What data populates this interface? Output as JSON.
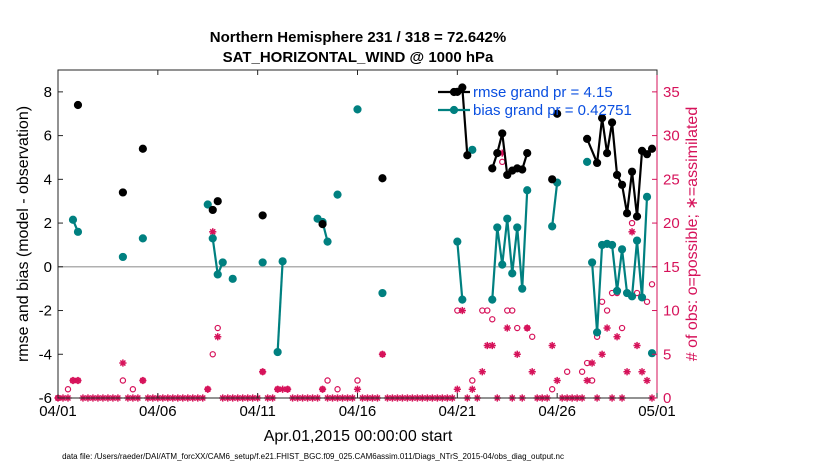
{
  "chart_data": {
    "type": "line",
    "title_lines": [
      "Northern Hemisphere 231 / 318 = 72.642%",
      "SAT_HORIZONTAL_WIND @ 1000 hPa"
    ],
    "xlabel": "Apr.01,2015 00:00:00 start",
    "ylabel_left": "rmse and bias (model - observation)",
    "ylabel_right": "# of obs: o=possible; ∗=assimilated",
    "footer": "data file: /Users/raeder/DAI/ATM_forcXX/CAM6_setup/f.e21.FHIST_BGC.f09_025.CAM6assim.011/Diags_NTrS_2015-04/obs_diag_output.nc",
    "x_domain_days": [
      0,
      30
    ],
    "x_ticks": [
      {
        "day": 0,
        "label": "04/01"
      },
      {
        "day": 5,
        "label": "04/06"
      },
      {
        "day": 10,
        "label": "04/11"
      },
      {
        "day": 15,
        "label": "04/16"
      },
      {
        "day": 20,
        "label": "04/21"
      },
      {
        "day": 25,
        "label": "04/26"
      },
      {
        "day": 30,
        "label": "05/01"
      }
    ],
    "ylim_left": [
      -6,
      9
    ],
    "y_ticks_left": [
      -6,
      -4,
      -2,
      0,
      2,
      4,
      6,
      8
    ],
    "ylim_right": [
      0,
      37.5
    ],
    "y_ticks_right": [
      0,
      5,
      10,
      15,
      20,
      25,
      30,
      35
    ],
    "zero_line": true,
    "legend_position": "top-right",
    "colors": {
      "rmse": "#000000",
      "bias": "#008080",
      "obs": "#d6125a",
      "zero": "#b0b0b0"
    },
    "series": [
      {
        "name": "rmse grand pr = 4.15",
        "key": "rmse",
        "points": [
          [
            1.0,
            7.4
          ],
          [
            3.25,
            3.4
          ],
          [
            4.25,
            5.4
          ],
          [
            7.75,
            2.6
          ],
          [
            8.0,
            3.0
          ],
          [
            10.25,
            2.35
          ],
          [
            13.25,
            1.95
          ],
          [
            16.25,
            4.05
          ],
          [
            20.0,
            8.0
          ],
          [
            20.25,
            8.2
          ],
          [
            20.5,
            5.1
          ],
          [
            21.75,
            4.5
          ],
          [
            22.0,
            5.2
          ],
          [
            22.25,
            6.1
          ],
          [
            22.5,
            4.2
          ],
          [
            22.75,
            4.4
          ],
          [
            23.0,
            4.5
          ],
          [
            23.25,
            4.45
          ],
          [
            23.5,
            5.2
          ],
          [
            24.75,
            4.0
          ],
          [
            25.0,
            7.0
          ],
          [
            26.5,
            5.85
          ],
          [
            27.0,
            4.75
          ],
          [
            27.25,
            6.8
          ],
          [
            27.5,
            5.2
          ],
          [
            27.75,
            6.6
          ],
          [
            28.0,
            4.2
          ],
          [
            28.25,
            3.75
          ],
          [
            28.5,
            2.45
          ],
          [
            28.75,
            4.35
          ],
          [
            29.0,
            2.3
          ],
          [
            29.25,
            5.3
          ],
          [
            29.5,
            5.15
          ],
          [
            29.75,
            5.4
          ]
        ],
        "segments": [
          [
            20.0,
            20.25,
            20.5
          ],
          [
            21.75,
            22.0,
            22.25,
            22.5,
            22.75,
            23.0,
            23.25,
            23.5
          ],
          [
            26.5,
            27.0,
            27.25,
            27.5,
            27.75,
            28.0,
            28.25,
            28.5,
            28.75,
            29.0,
            29.25,
            29.5
          ]
        ]
      },
      {
        "name": "bias grand pr = 0.42751",
        "key": "bias",
        "points": [
          [
            0.75,
            2.15
          ],
          [
            1.0,
            1.6
          ],
          [
            3.25,
            0.45
          ],
          [
            4.25,
            1.3
          ],
          [
            7.5,
            2.85
          ],
          [
            7.75,
            1.3
          ],
          [
            8.0,
            -0.35
          ],
          [
            8.25,
            0.2
          ],
          [
            8.75,
            -0.55
          ],
          [
            10.25,
            0.2
          ],
          [
            11.0,
            -3.9
          ],
          [
            11.25,
            0.25
          ],
          [
            13.0,
            2.2
          ],
          [
            13.25,
            2.05
          ],
          [
            13.5,
            1.15
          ],
          [
            14.0,
            3.3
          ],
          [
            15.0,
            7.2
          ],
          [
            16.25,
            -1.2
          ],
          [
            20.0,
            1.15
          ],
          [
            20.25,
            -1.5
          ],
          [
            20.75,
            5.35
          ],
          [
            21.75,
            -1.5
          ],
          [
            22.0,
            1.8
          ],
          [
            22.25,
            0.1
          ],
          [
            22.5,
            2.2
          ],
          [
            22.75,
            -0.3
          ],
          [
            23.0,
            1.8
          ],
          [
            23.25,
            -1.0
          ],
          [
            23.5,
            3.5
          ],
          [
            24.75,
            1.85
          ],
          [
            25.0,
            3.85
          ],
          [
            26.5,
            4.8
          ],
          [
            26.75,
            0.2
          ],
          [
            27.0,
            -3.0
          ],
          [
            27.25,
            1.0
          ],
          [
            27.5,
            1.05
          ],
          [
            27.75,
            1.0
          ],
          [
            28.0,
            -1.1
          ],
          [
            28.25,
            0.8
          ],
          [
            28.5,
            -1.2
          ],
          [
            28.75,
            -1.35
          ],
          [
            29.0,
            1.2
          ],
          [
            29.25,
            -1.4
          ],
          [
            29.5,
            3.2
          ],
          [
            29.75,
            -3.95
          ]
        ],
        "segments": [
          [
            0.75,
            1.0
          ],
          [
            7.75,
            8.0,
            8.25
          ],
          [
            11.0,
            11.25
          ],
          [
            13.25,
            13.5
          ],
          [
            20.0,
            20.25
          ],
          [
            21.75,
            22.0,
            22.25,
            22.5,
            22.75,
            23.0,
            23.25,
            23.5
          ],
          [
            24.75,
            25.0
          ],
          [
            26.75,
            27.0,
            27.25,
            27.5,
            27.75,
            28.0,
            28.25,
            28.5,
            28.75,
            29.0,
            29.25,
            29.5
          ]
        ]
      },
      {
        "name": "obs possible",
        "key": "possible",
        "marker": "o",
        "points": [
          [
            0.0,
            0
          ],
          [
            0.5,
            1
          ],
          [
            0.75,
            2
          ],
          [
            1.0,
            2
          ],
          [
            3.25,
            2
          ],
          [
            3.75,
            1
          ],
          [
            4.25,
            2
          ],
          [
            7.5,
            1
          ],
          [
            7.75,
            5
          ],
          [
            8.0,
            8
          ],
          [
            10.25,
            3
          ],
          [
            11.0,
            1
          ],
          [
            11.5,
            1
          ],
          [
            13.25,
            1
          ],
          [
            13.5,
            2
          ],
          [
            14.0,
            1
          ],
          [
            15.0,
            2
          ],
          [
            16.25,
            5
          ],
          [
            20.0,
            10
          ],
          [
            20.75,
            2
          ],
          [
            21.25,
            10
          ],
          [
            21.5,
            10
          ],
          [
            21.75,
            9
          ],
          [
            22.25,
            27
          ],
          [
            22.5,
            10
          ],
          [
            22.75,
            10
          ],
          [
            23.0,
            8
          ],
          [
            23.5,
            8
          ],
          [
            23.75,
            7
          ],
          [
            24.75,
            1
          ],
          [
            25.5,
            3
          ],
          [
            26.25,
            3
          ],
          [
            26.5,
            4
          ],
          [
            26.75,
            2
          ],
          [
            27.0,
            7
          ],
          [
            27.25,
            11
          ],
          [
            27.5,
            10
          ],
          [
            27.75,
            12
          ],
          [
            28.0,
            12
          ],
          [
            28.25,
            8
          ],
          [
            28.5,
            12
          ],
          [
            28.75,
            20
          ],
          [
            29.0,
            12
          ],
          [
            29.5,
            11
          ],
          [
            29.75,
            13
          ]
        ]
      },
      {
        "name": "obs assimilated",
        "key": "assim",
        "marker": "*",
        "points": [
          [
            0.0,
            0
          ],
          [
            0.25,
            0
          ],
          [
            0.5,
            0
          ],
          [
            0.75,
            2
          ],
          [
            1.0,
            2
          ],
          [
            1.25,
            0
          ],
          [
            1.5,
            0
          ],
          [
            1.75,
            0
          ],
          [
            2.0,
            0
          ],
          [
            2.25,
            0
          ],
          [
            2.5,
            0
          ],
          [
            2.75,
            0
          ],
          [
            3.0,
            0
          ],
          [
            3.25,
            4
          ],
          [
            3.5,
            0
          ],
          [
            3.75,
            0
          ],
          [
            4.0,
            0
          ],
          [
            4.25,
            2
          ],
          [
            4.5,
            0
          ],
          [
            4.75,
            0
          ],
          [
            5.0,
            0
          ],
          [
            5.25,
            0
          ],
          [
            5.5,
            0
          ],
          [
            5.75,
            0
          ],
          [
            6.0,
            0
          ],
          [
            6.25,
            0
          ],
          [
            6.5,
            0
          ],
          [
            6.75,
            0
          ],
          [
            7.0,
            0
          ],
          [
            7.25,
            0
          ],
          [
            7.5,
            1
          ],
          [
            7.75,
            19
          ],
          [
            8.0,
            7
          ],
          [
            8.25,
            0
          ],
          [
            8.5,
            0
          ],
          [
            8.75,
            0
          ],
          [
            9.0,
            0
          ],
          [
            9.25,
            0
          ],
          [
            9.5,
            0
          ],
          [
            9.75,
            0
          ],
          [
            10.0,
            0
          ],
          [
            10.25,
            3
          ],
          [
            10.5,
            0
          ],
          [
            10.75,
            0
          ],
          [
            11.0,
            1
          ],
          [
            11.25,
            1
          ],
          [
            11.5,
            1
          ],
          [
            11.75,
            0
          ],
          [
            12.0,
            0
          ],
          [
            12.25,
            0
          ],
          [
            12.5,
            0
          ],
          [
            12.75,
            0
          ],
          [
            13.0,
            0
          ],
          [
            13.25,
            1
          ],
          [
            13.5,
            0
          ],
          [
            13.75,
            0
          ],
          [
            14.0,
            0
          ],
          [
            14.25,
            0
          ],
          [
            14.5,
            0
          ],
          [
            14.75,
            0
          ],
          [
            15.0,
            1
          ],
          [
            15.25,
            0
          ],
          [
            15.5,
            0
          ],
          [
            15.75,
            0
          ],
          [
            16.0,
            0
          ],
          [
            16.25,
            5
          ],
          [
            16.5,
            0
          ],
          [
            16.75,
            0
          ],
          [
            17.0,
            0
          ],
          [
            17.25,
            0
          ],
          [
            17.5,
            0
          ],
          [
            17.75,
            0
          ],
          [
            18.0,
            0
          ],
          [
            18.25,
            0
          ],
          [
            18.5,
            0
          ],
          [
            18.75,
            0
          ],
          [
            19.0,
            0
          ],
          [
            19.25,
            0
          ],
          [
            19.5,
            0
          ],
          [
            19.75,
            0
          ],
          [
            20.0,
            1
          ],
          [
            20.25,
            10
          ],
          [
            20.5,
            0
          ],
          [
            20.75,
            1
          ],
          [
            21.0,
            0
          ],
          [
            21.25,
            3
          ],
          [
            21.5,
            6
          ],
          [
            21.75,
            6
          ],
          [
            22.0,
            0
          ],
          [
            22.25,
            28
          ],
          [
            22.5,
            8
          ],
          [
            22.75,
            0
          ],
          [
            23.0,
            5
          ],
          [
            23.25,
            0
          ],
          [
            23.5,
            8
          ],
          [
            23.75,
            3
          ],
          [
            24.0,
            0
          ],
          [
            24.25,
            0
          ],
          [
            24.5,
            0
          ],
          [
            24.75,
            6
          ],
          [
            25.0,
            2
          ],
          [
            25.25,
            0
          ],
          [
            25.5,
            0
          ],
          [
            25.75,
            0
          ],
          [
            26.0,
            0
          ],
          [
            26.25,
            0
          ],
          [
            26.5,
            2
          ],
          [
            26.75,
            4
          ],
          [
            27.0,
            0
          ],
          [
            27.25,
            5
          ],
          [
            27.5,
            8
          ],
          [
            27.75,
            0
          ],
          [
            28.0,
            7
          ],
          [
            28.25,
            0
          ],
          [
            28.5,
            3
          ],
          [
            28.75,
            19
          ],
          [
            29.0,
            6
          ],
          [
            29.25,
            3
          ],
          [
            29.5,
            2
          ],
          [
            29.75,
            0
          ]
        ]
      }
    ]
  }
}
